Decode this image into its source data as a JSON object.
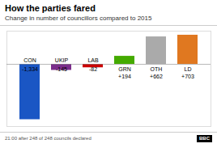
{
  "chart_data": {
    "type": "bar",
    "title": "How the parties fared",
    "subtitle": "Change in number of councillors compared to 2015",
    "caption": "21:00 after 248 of 248 councils declared",
    "annotations": [
      "BBC"
    ],
    "categories": [
      "CON",
      "UKIP",
      "LAB",
      "GRN",
      "OTH",
      "LD"
    ],
    "values": [
      -1334,
      -145,
      -82,
      194,
      662,
      703
    ],
    "value_labels": [
      "-1,334",
      "-145",
      "-82",
      "+194",
      "+662",
      "+703"
    ],
    "colors": [
      "#1a56c4",
      "#7b2d8b",
      "#cc0000",
      "#44aa00",
      "#aaaaaa",
      "#e07820"
    ],
    "ylim": [
      -1500,
      800
    ],
    "data_labels": true,
    "tick_labels": false,
    "grid": false
  }
}
